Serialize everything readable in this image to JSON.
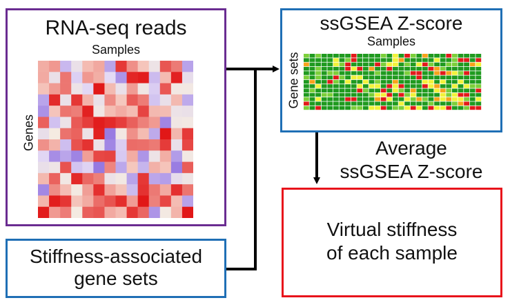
{
  "rna": {
    "title": "RNA-seq reads",
    "col_label": "Samples",
    "row_label": "Genes",
    "border_color": "#6a2c91"
  },
  "ssgsea": {
    "title": "ssGSEA Z-score",
    "col_label": "Samples",
    "row_label": "Gene sets",
    "border_color": "#1f6fb5"
  },
  "average": {
    "line1": "Average",
    "line2": "ssGSEA Z-score"
  },
  "virtual": {
    "line1": "Virtual stiffness",
    "line2": "of each sample",
    "border_color": "#e8131b"
  },
  "stiffness": {
    "line1": "Stiffness-associated",
    "line2": "gene sets",
    "border_color": "#1f6fb5"
  }
}
